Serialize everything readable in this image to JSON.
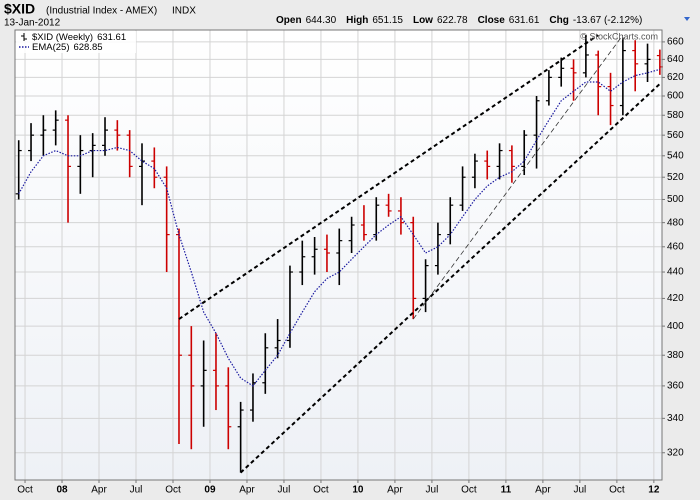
{
  "header": {
    "symbol": "$XID",
    "name": "(Industrial Index - AMEX)",
    "exchange": "INDX",
    "date": "13-Jan-2012",
    "quote": [
      {
        "label": "Open",
        "value": "644.30"
      },
      {
        "label": "High",
        "value": "651.15"
      },
      {
        "label": "Low",
        "value": "622.78"
      },
      {
        "label": "Close",
        "value": "631.61"
      },
      {
        "label": "Chg",
        "value": "-13.67 (-2.12%)"
      }
    ],
    "watermark": "© StockCharts.com"
  },
  "chart_data": {
    "type": "ohlc",
    "log_scale": true,
    "grid": true,
    "legend": "top-left",
    "up_color": "#000000",
    "down_color": "#cc0000",
    "categories": [
      "2007-09",
      "2007-10",
      "2007-11",
      "2007-12",
      "2008-01",
      "2008-02",
      "2008-03",
      "2008-04",
      "2008-05",
      "2008-06",
      "2008-07",
      "2008-08",
      "2008-09",
      "2008-10",
      "2008-11",
      "2008-12",
      "2009-01",
      "2009-02",
      "2009-03",
      "2009-04",
      "2009-05",
      "2009-06",
      "2009-07",
      "2009-08",
      "2009-09",
      "2009-10",
      "2009-11",
      "2009-12",
      "2010-01",
      "2010-02",
      "2010-03",
      "2010-04",
      "2010-05",
      "2010-06",
      "2010-07",
      "2010-08",
      "2010-09",
      "2010-10",
      "2010-11",
      "2010-12",
      "2011-01",
      "2011-02",
      "2011-03",
      "2011-04",
      "2011-05",
      "2011-06",
      "2011-07",
      "2011-08",
      "2011-09",
      "2011-10",
      "2011-11",
      "2011-12",
      "2012-01"
    ],
    "series": [
      {
        "name": "$XID (Weekly)",
        "legend_value": "631.61",
        "open": [
          505,
          545,
          560,
          565,
          575,
          530,
          545,
          550,
          565,
          560,
          530,
          535,
          520,
          470,
          380,
          360,
          370,
          360,
          335,
          345,
          362,
          385,
          390,
          440,
          452,
          458,
          455,
          465,
          478,
          470,
          495,
          490,
          480,
          420,
          445,
          470,
          495,
          520,
          535,
          530,
          545,
          530,
          560,
          595,
          620,
          630,
          625,
          645,
          610,
          590,
          650,
          635,
          644.3
        ],
        "high": [
          555,
          572,
          580,
          585,
          580,
          560,
          562,
          578,
          575,
          565,
          552,
          548,
          530,
          475,
          400,
          390,
          395,
          372,
          350,
          368,
          395,
          405,
          445,
          465,
          468,
          470,
          475,
          485,
          495,
          502,
          505,
          502,
          485,
          450,
          480,
          502,
          530,
          542,
          545,
          552,
          550,
          565,
          600,
          628,
          642,
          640,
          668,
          650,
          625,
          665,
          662,
          658,
          651.15
        ],
        "low": [
          500,
          535,
          540,
          550,
          480,
          505,
          520,
          540,
          545,
          520,
          495,
          510,
          440,
          325,
          322,
          335,
          345,
          322,
          309,
          338,
          355,
          378,
          385,
          430,
          438,
          440,
          430,
          455,
          465,
          465,
          485,
          470,
          405,
          410,
          438,
          462,
          490,
          510,
          518,
          518,
          515,
          522,
          528,
          590,
          610,
          595,
          620,
          580,
          570,
          580,
          605,
          615,
          622.78
        ],
        "close": [
          545,
          560,
          565,
          575,
          530,
          545,
          550,
          565,
          560,
          530,
          535,
          520,
          470,
          380,
          360,
          370,
          360,
          335,
          345,
          362,
          385,
          390,
          440,
          452,
          458,
          455,
          465,
          478,
          470,
          495,
          490,
          480,
          420,
          445,
          470,
          495,
          520,
          535,
          530,
          545,
          530,
          560,
          595,
          620,
          630,
          625,
          645,
          610,
          590,
          650,
          635,
          640,
          631.61
        ]
      },
      {
        "name": "EMA(25)",
        "legend_value": "628.85",
        "color": "#1a1aa0",
        "values": [
          505,
          525,
          540,
          545,
          540,
          540,
          545,
          545,
          548,
          545,
          535,
          528,
          510,
          470,
          440,
          410,
          395,
          378,
          365,
          360,
          370,
          380,
          395,
          410,
          425,
          435,
          440,
          450,
          460,
          470,
          478,
          485,
          470,
          455,
          460,
          470,
          485,
          500,
          512,
          520,
          525,
          535,
          555,
          575,
          595,
          605,
          615,
          615,
          605,
          615,
          622,
          625,
          628.85
        ]
      }
    ],
    "trendlines": [
      {
        "x": [
          "2008-10",
          "2011-08"
        ],
        "y": [
          405,
          668
        ],
        "style": "heavy"
      },
      {
        "x": [
          "2009-03",
          "2012-01"
        ],
        "y": [
          309,
          613
        ],
        "style": "heavy"
      },
      {
        "x": [
          "2010-05",
          "2011-10"
        ],
        "y": [
          405,
          668
        ],
        "style": "thin"
      }
    ],
    "ylim": [
      305,
      674
    ],
    "yticks": [
      320,
      340,
      360,
      380,
      400,
      420,
      440,
      460,
      480,
      500,
      520,
      540,
      560,
      580,
      600,
      620,
      640,
      660
    ],
    "xticks": [
      {
        "value": "2007-10",
        "label": "Oct"
      },
      {
        "value": "2008-01",
        "label": "08"
      },
      {
        "value": "2008-04",
        "label": "Apr"
      },
      {
        "value": "2008-07",
        "label": "Jul"
      },
      {
        "value": "2008-10",
        "label": "Oct"
      },
      {
        "value": "2009-01",
        "label": "09"
      },
      {
        "value": "2009-04",
        "label": "Apr"
      },
      {
        "value": "2009-07",
        "label": "Jul"
      },
      {
        "value": "2009-10",
        "label": "Oct"
      },
      {
        "value": "2010-01",
        "label": "10"
      },
      {
        "value": "2010-04",
        "label": "Apr"
      },
      {
        "value": "2010-07",
        "label": "Jul"
      },
      {
        "value": "2010-10",
        "label": "Oct"
      },
      {
        "value": "2011-01",
        "label": "11"
      },
      {
        "value": "2011-04",
        "label": "Apr"
      },
      {
        "value": "2011-07",
        "label": "Jul"
      },
      {
        "value": "2011-10",
        "label": "Oct"
      },
      {
        "value": "2012-01",
        "label": "12"
      }
    ]
  }
}
